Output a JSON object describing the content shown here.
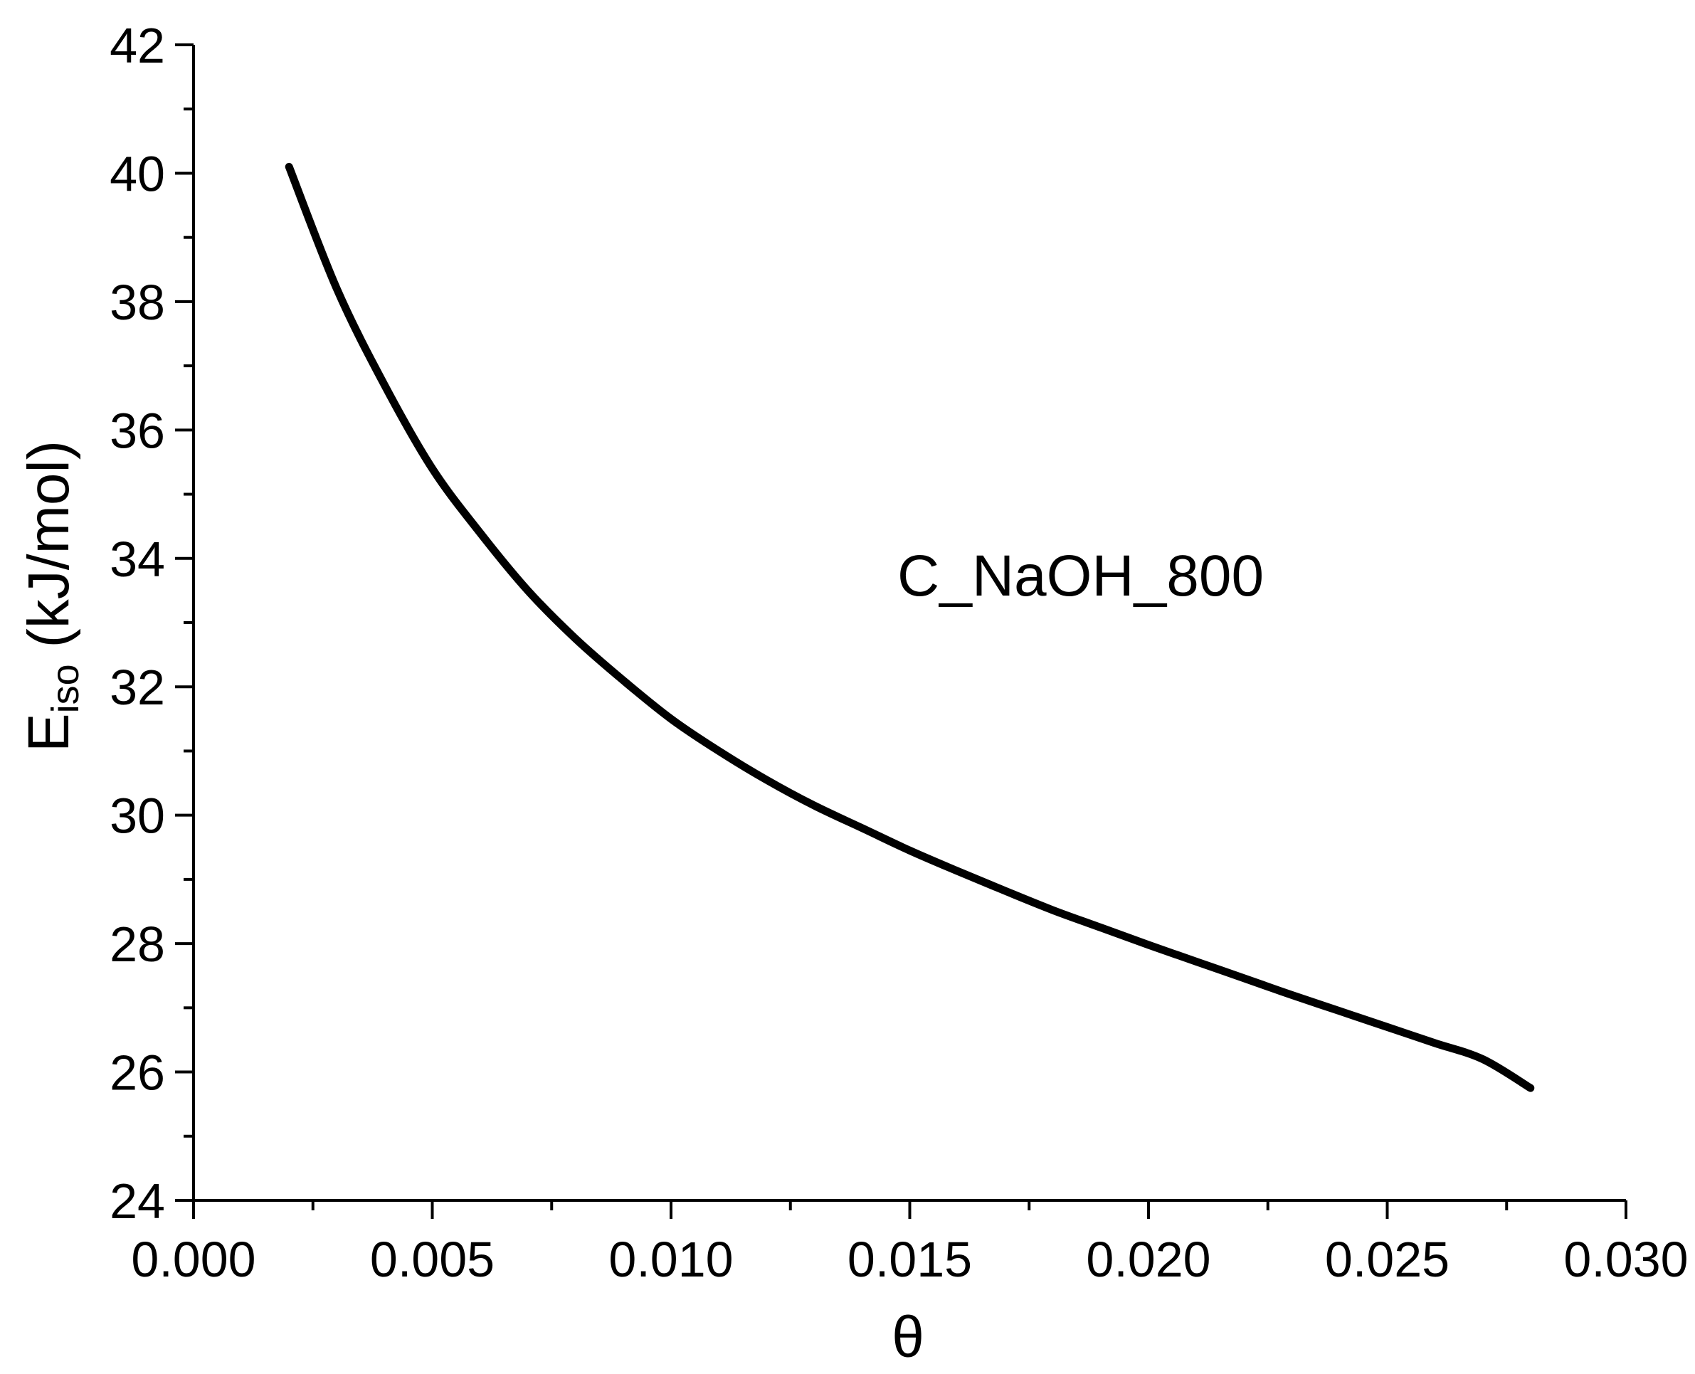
{
  "chart_data": {
    "type": "line",
    "title": "",
    "xlabel": "θ",
    "ylabel": {
      "main": "E",
      "subscript": "iso",
      "unit": " (kJ/mol)"
    },
    "xlim": [
      0.0,
      0.03
    ],
    "ylim": [
      24,
      42
    ],
    "x_ticks": [
      0.0,
      0.005,
      0.01,
      0.015,
      0.02,
      0.025,
      0.03
    ],
    "x_tick_labels": [
      "0.000",
      "0.005",
      "0.010",
      "0.015",
      "0.020",
      "0.025",
      "0.030"
    ],
    "y_ticks": [
      24,
      26,
      28,
      30,
      32,
      34,
      36,
      38,
      40,
      42
    ],
    "y_tick_labels": [
      "24",
      "26",
      "28",
      "30",
      "32",
      "34",
      "36",
      "38",
      "40",
      "42"
    ],
    "grid": false,
    "annotation": "C_NaOH_800",
    "series": [
      {
        "color": "#000000",
        "x": [
          0.002,
          0.003,
          0.004,
          0.005,
          0.006,
          0.007,
          0.008,
          0.009,
          0.01,
          0.011,
          0.012,
          0.013,
          0.014,
          0.015,
          0.016,
          0.017,
          0.018,
          0.019,
          0.02,
          0.021,
          0.022,
          0.023,
          0.024,
          0.025,
          0.026,
          0.027,
          0.028
        ],
        "y": [
          40.1,
          38.2,
          36.7,
          35.4,
          34.4,
          33.5,
          32.75,
          32.1,
          31.5,
          31.0,
          30.55,
          30.15,
          29.8,
          29.45,
          29.13,
          28.82,
          28.52,
          28.25,
          27.98,
          27.72,
          27.46,
          27.2,
          26.95,
          26.7,
          26.45,
          26.2,
          25.75
        ]
      }
    ]
  }
}
